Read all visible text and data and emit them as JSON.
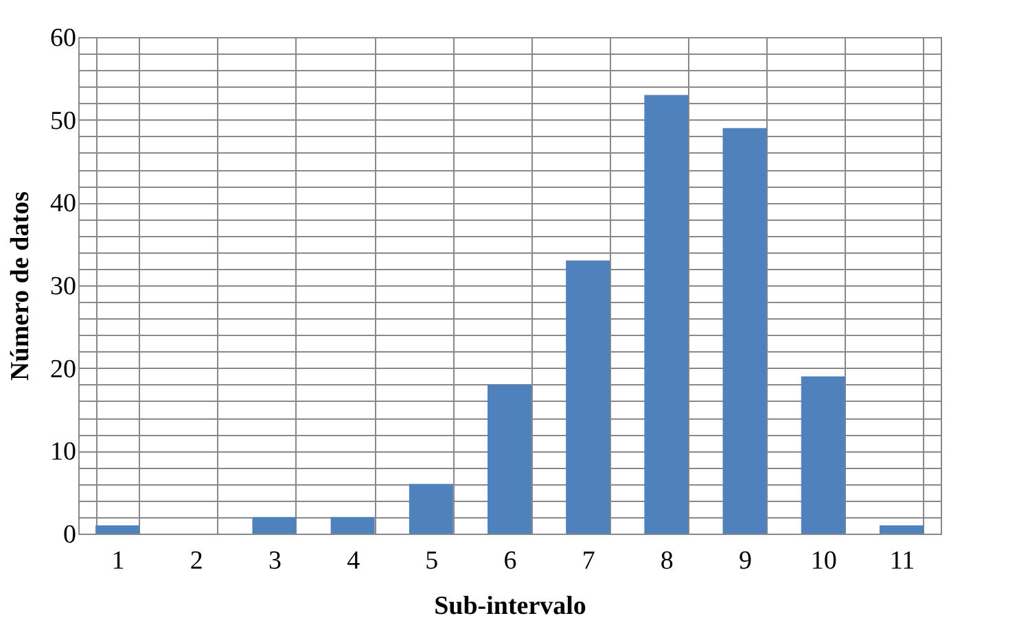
{
  "chart_data": {
    "type": "bar",
    "xlabel": "Sub-intervalo",
    "ylabel": "Número de datos",
    "categories": [
      "1",
      "2",
      "3",
      "4",
      "5",
      "6",
      "7",
      "8",
      "9",
      "10",
      "11"
    ],
    "values": [
      1,
      0,
      2,
      2,
      6,
      18,
      33,
      53,
      49,
      19,
      1
    ],
    "color": "#4f81bd",
    "ylim": [
      0,
      60
    ],
    "yticks": [
      0,
      {
        "value": 2,
        "label": null
      },
      {
        "value": 4,
        "label": null
      },
      {
        "value": 6,
        "label": null
      },
      {
        "value": 8,
        "label": null
      },
      10,
      {
        "value": 12,
        "label": null
      },
      {
        "value": 14,
        "label": null
      },
      {
        "value": 16,
        "label": null
      },
      {
        "value": 18,
        "label": null
      },
      20,
      {
        "value": 22,
        "label": null
      },
      {
        "value": 24,
        "label": null
      },
      {
        "value": 26,
        "label": null
      },
      {
        "value": 28,
        "label": null
      },
      30,
      {
        "value": 32,
        "label": null
      },
      {
        "value": 34,
        "label": null
      },
      {
        "value": 36,
        "label": null
      },
      {
        "value": 38,
        "label": null
      },
      40,
      {
        "value": 42,
        "label": null
      },
      {
        "value": 44,
        "label": null
      },
      {
        "value": 46,
        "label": null
      },
      {
        "value": 48,
        "label": null
      },
      50,
      {
        "value": 52,
        "label": null
      },
      {
        "value": 54,
        "label": null
      },
      {
        "value": 56,
        "label": null
      },
      {
        "value": 58,
        "label": null
      },
      60
    ],
    "grid": true
  }
}
